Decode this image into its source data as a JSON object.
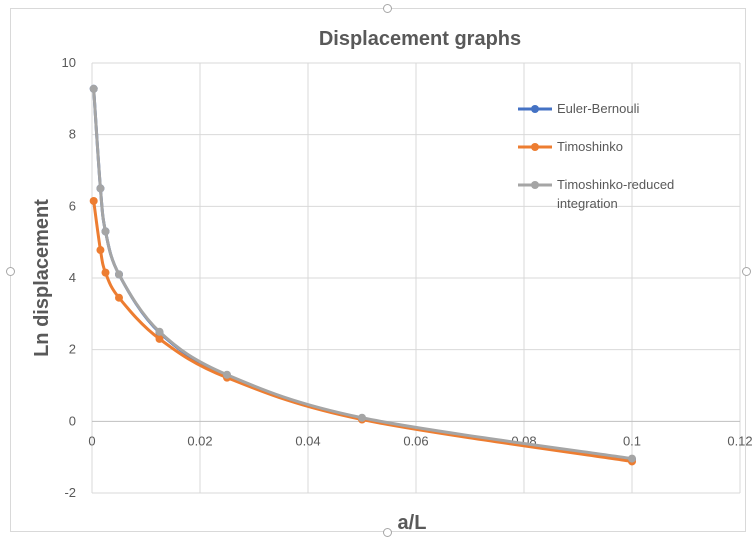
{
  "chart_data": {
    "type": "line",
    "title": "Displacement graphs",
    "xlabel": "a/L",
    "ylabel": "Ln displacement",
    "xlim": [
      0,
      0.12
    ],
    "ylim": [
      -2,
      10
    ],
    "x_ticks": [
      "0",
      "0.02",
      "0.04",
      "0.06",
      "0.08",
      "0.1",
      "0.12"
    ],
    "y_ticks": [
      "-2",
      "0",
      "2",
      "4",
      "6",
      "8",
      "10"
    ],
    "grid": true,
    "legend_position": "right",
    "series": [
      {
        "name": "Euler-Bernouli",
        "color": "#4472c4",
        "x": [
          0.0003125,
          0.0015625,
          0.0025,
          0.005,
          0.0125,
          0.025,
          0.05,
          0.1
        ],
        "y": [
          9.28,
          6.5,
          5.3,
          4.1,
          2.48,
          1.28,
          0.08,
          -1.06
        ]
      },
      {
        "name": "Timoshinko",
        "color": "#ed7d31",
        "x": [
          0.0003125,
          0.0015625,
          0.0025,
          0.005,
          0.0125,
          0.025,
          0.05,
          0.1
        ],
        "y": [
          6.15,
          4.78,
          4.15,
          3.45,
          2.3,
          1.22,
          0.05,
          -1.12
        ]
      },
      {
        "name": "Timoshinko-reduced integration",
        "color": "#a5a5a5",
        "x": [
          0.0003125,
          0.0015625,
          0.0025,
          0.005,
          0.0125,
          0.025,
          0.05,
          0.1
        ],
        "y": [
          9.28,
          6.5,
          5.3,
          4.1,
          2.5,
          1.3,
          0.1,
          -1.04
        ]
      }
    ]
  }
}
